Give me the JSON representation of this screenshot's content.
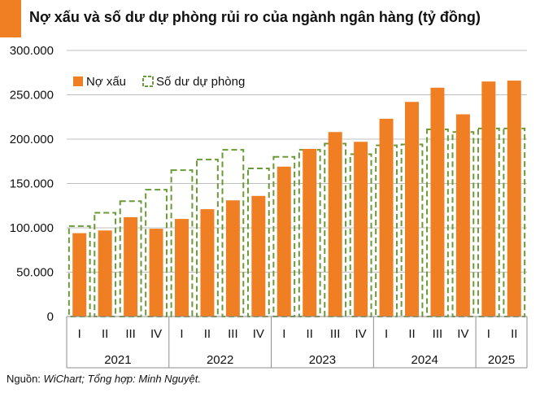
{
  "title": "Nợ xấu và số dư dự phòng rủi ro của ngành ngân hàng (tỷ đồng)",
  "source": {
    "prefix": "Nguồn: ",
    "text": "WiChart; Tổng hợp: Minh Nguyệt."
  },
  "colors": {
    "accent": "#f07f24",
    "bar": "#f07f24",
    "provision": "#6a9a38",
    "grid": "#bfbfbf"
  },
  "chart_data": {
    "type": "bar",
    "title": "Nợ xấu và số dư dự phòng rủi ro của ngành ngân hàng (tỷ đồng)",
    "xlabel": "",
    "ylabel": "",
    "ylim": [
      0,
      300000
    ],
    "yticks": [
      0,
      50000,
      100000,
      150000,
      200000,
      250000,
      300000
    ],
    "ytick_labels": [
      "0",
      "50.000",
      "100.000",
      "150.000",
      "200.000",
      "250.000",
      "300.000"
    ],
    "grid": true,
    "legend_position": "top-left",
    "categories": [
      "I",
      "II",
      "III",
      "IV",
      "I",
      "II",
      "III",
      "IV",
      "I",
      "II",
      "III",
      "IV",
      "I",
      "II",
      "III",
      "IV",
      "I",
      "II"
    ],
    "groups": [
      {
        "label": "2021",
        "count": 4
      },
      {
        "label": "2022",
        "count": 4
      },
      {
        "label": "2023",
        "count": 4
      },
      {
        "label": "2024",
        "count": 4
      },
      {
        "label": "2025",
        "count": 2
      }
    ],
    "series": [
      {
        "name": "Nợ xấu",
        "style": "solid-bar",
        "values": [
          94000,
          97000,
          112000,
          99000,
          110000,
          121000,
          131000,
          136000,
          169000,
          189000,
          208000,
          197000,
          223000,
          242000,
          258000,
          228000,
          265000,
          266000
        ]
      },
      {
        "name": "Số dư dự phòng",
        "style": "dashed-outline-bar",
        "values": [
          102000,
          117000,
          130000,
          143000,
          165000,
          177000,
          188000,
          167000,
          180000,
          188000,
          195000,
          183000,
          193000,
          194000,
          211000,
          208000,
          212000,
          212000
        ]
      }
    ]
  }
}
